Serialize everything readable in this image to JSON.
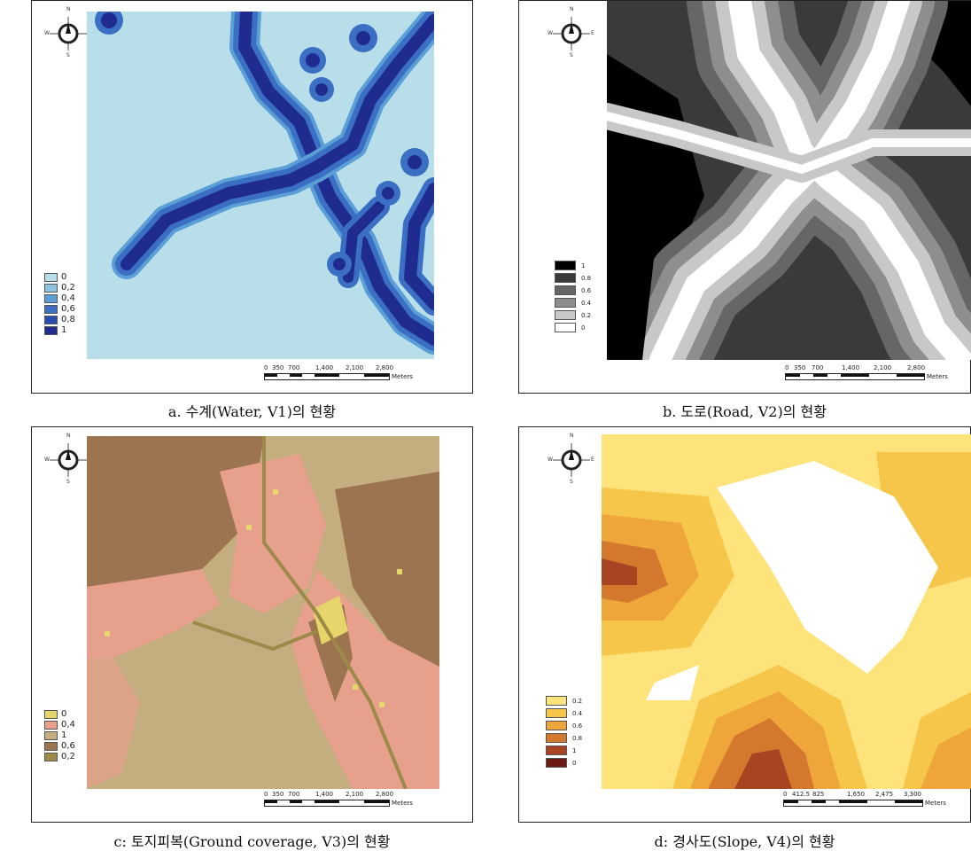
{
  "panels": [
    {
      "id": "a",
      "caption": "a. 수계(Water, V1)의 현황",
      "compass": {
        "n": "N",
        "e": "E",
        "s": "S",
        "w": "W"
      },
      "legend": [
        {
          "label": "0",
          "color": "#b8dfe9"
        },
        {
          "label": "0,2",
          "color": "#8dc4e2"
        },
        {
          "label": "0,4",
          "color": "#5c9fd6"
        },
        {
          "label": "0,6",
          "color": "#3a6fc3"
        },
        {
          "label": "0,8",
          "color": "#2a4db0"
        },
        {
          "label": "1",
          "color": "#1f2b8e"
        }
      ],
      "scale": {
        "ticks": [
          "0",
          "350",
          "700",
          "1,400",
          "2,100",
          "2,800"
        ],
        "units": "Meters"
      }
    },
    {
      "id": "b",
      "caption": "b. 도로(Road, V2)의 현황",
      "compass": {
        "n": "N",
        "e": "E",
        "s": "S",
        "w": "W"
      },
      "legend": [
        {
          "label": "1",
          "color": "#000000"
        },
        {
          "label": "0.8",
          "color": "#3a3a3a"
        },
        {
          "label": "0.6",
          "color": "#666666"
        },
        {
          "label": "0.4",
          "color": "#8e8e8e"
        },
        {
          "label": "0.2",
          "color": "#c8c8c8"
        },
        {
          "label": "0",
          "color": "#ffffff"
        }
      ],
      "scale": {
        "ticks": [
          "0",
          "350",
          "700",
          "1,400",
          "2,100",
          "2,800"
        ],
        "units": "Meters"
      }
    },
    {
      "id": "c",
      "caption": "c: 토지피복(Ground coverage, V3)의 현황",
      "compass": {
        "n": "N",
        "e": "E",
        "s": "S",
        "w": "W"
      },
      "legend": [
        {
          "label": "0",
          "color": "#e5d56a"
        },
        {
          "label": "0,4",
          "color": "#e6a08c"
        },
        {
          "label": "1",
          "color": "#c4ae80"
        },
        {
          "label": "0,6",
          "color": "#9c7450"
        },
        {
          "label": "0,2",
          "color": "#9c8a48"
        }
      ],
      "scale": {
        "ticks": [
          "0",
          "350",
          "700",
          "1,400",
          "2,100",
          "2,800"
        ],
        "units": "Meters"
      }
    },
    {
      "id": "d",
      "caption": "d: 경사도(Slope, V4)의 현황",
      "compass": {
        "n": "N",
        "e": "E",
        "s": "S",
        "w": "W"
      },
      "legend": [
        {
          "label": "0.2",
          "color": "#fde37a"
        },
        {
          "label": "0.4",
          "color": "#f5c64a"
        },
        {
          "label": "0.6",
          "color": "#eea63a"
        },
        {
          "label": "0.8",
          "color": "#d4782e"
        },
        {
          "label": "1",
          "color": "#a84422"
        },
        {
          "label": "0",
          "color": "#6a1a12"
        }
      ],
      "scale": {
        "ticks": [
          "0",
          "412.5",
          "825",
          "1,650",
          "2,475",
          "3,300"
        ],
        "units": "Meters"
      }
    }
  ]
}
